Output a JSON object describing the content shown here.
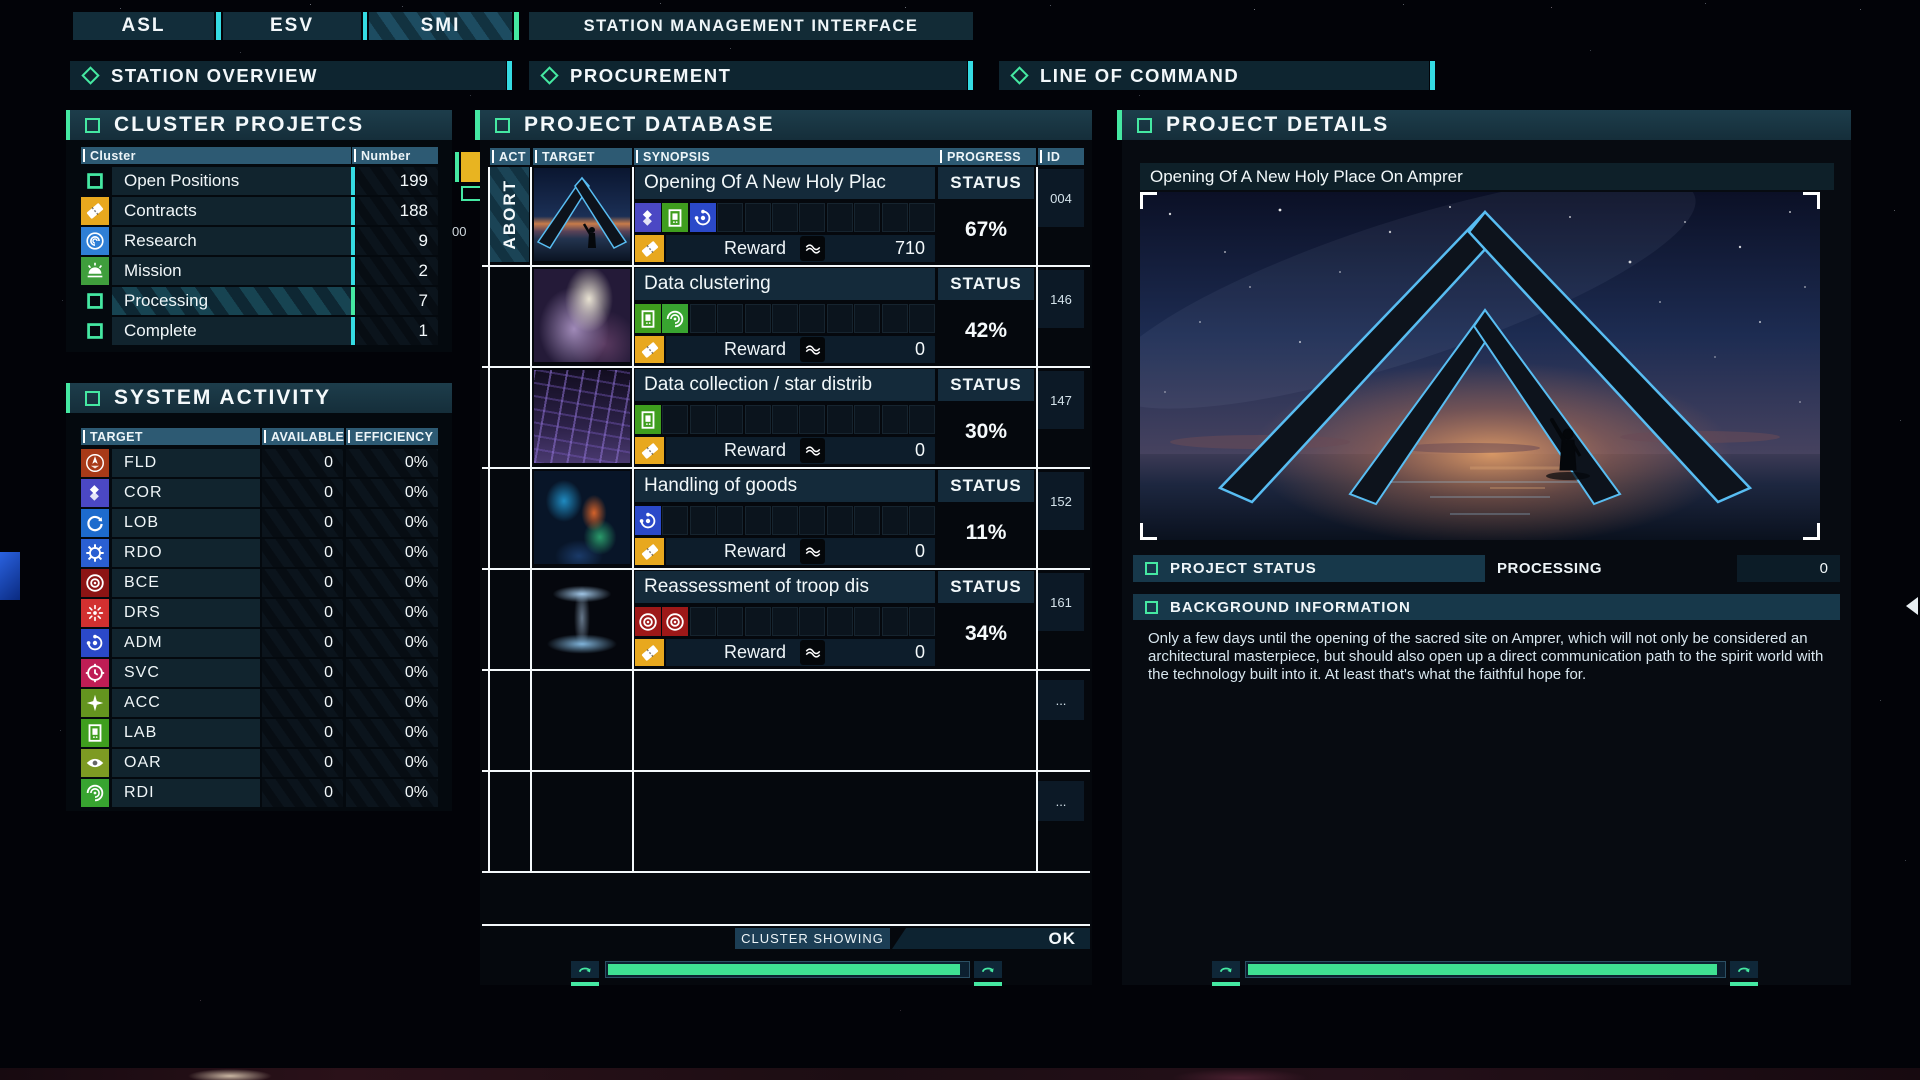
{
  "colors": {
    "green": "#45e8a2",
    "cyan": "#35dbe3",
    "amber": "#e8a81e"
  },
  "top_bar": {
    "tabs": [
      {
        "label": "ASL",
        "active": false
      },
      {
        "label": "ESV",
        "active": false
      },
      {
        "label": "SMI",
        "active": true
      }
    ],
    "title": "STATION MANAGEMENT INTERFACE"
  },
  "nav_tabs": [
    {
      "label": "STATION OVERVIEW"
    },
    {
      "label": "PROCUREMENT"
    },
    {
      "label": "LINE OF COMMAND"
    }
  ],
  "cluster_projects": {
    "title": "CLUSTER PROJETCS",
    "columns": [
      "Cluster",
      "Number"
    ],
    "rows": [
      {
        "label": "Open Positions",
        "value": "199",
        "icon": "square-outline",
        "icon_bg": ""
      },
      {
        "label": "Contracts",
        "value": "188",
        "icon": "ticket",
        "icon_bg": "#e8a81e"
      },
      {
        "label": "Research",
        "value": "9",
        "icon": "shell",
        "icon_bg": "#2f7fd6"
      },
      {
        "label": "Mission",
        "value": "2",
        "icon": "sunrise",
        "icon_bg": "#3f9e3c"
      },
      {
        "label": "Processing",
        "value": "7",
        "icon": "square-outline",
        "icon_bg": "",
        "highlight": true
      },
      {
        "label": "Complete",
        "value": "1",
        "icon": "square-outline",
        "icon_bg": ""
      }
    ]
  },
  "system_activity": {
    "title": "SYSTEM ACTIVITY",
    "columns": [
      "TARGET",
      "AVAILABLE",
      "EFFICIENCY"
    ],
    "rows": [
      {
        "label": "FLD",
        "available": "0",
        "efficiency": "0%",
        "icon": "ship",
        "icon_bg": "#a83a18"
      },
      {
        "label": "COR",
        "available": "0",
        "efficiency": "0%",
        "icon": "diamonds",
        "icon_bg": "#4b48c4"
      },
      {
        "label": "LOB",
        "available": "0",
        "efficiency": "0%",
        "icon": "cycle",
        "icon_bg": "#1d6bcd"
      },
      {
        "label": "RDO",
        "available": "0",
        "efficiency": "0%",
        "icon": "gearwheel",
        "icon_bg": "#2a5fd2"
      },
      {
        "label": "BCE",
        "available": "0",
        "efficiency": "0%",
        "icon": "target",
        "icon_bg": "#8c1414"
      },
      {
        "label": "DRS",
        "available": "0",
        "efficiency": "0%",
        "icon": "burst",
        "icon_bg": "#d23030"
      },
      {
        "label": "ADM",
        "available": "0",
        "efficiency": "0%",
        "icon": "swirl",
        "icon_bg": "#2b49c9"
      },
      {
        "label": "SVC",
        "available": "0",
        "efficiency": "0%",
        "icon": "gearclock",
        "icon_bg": "#bf1d55"
      },
      {
        "label": "ACC",
        "available": "0",
        "efficiency": "0%",
        "icon": "compass",
        "icon_bg": "#64941f"
      },
      {
        "label": "LAB",
        "available": "0",
        "efficiency": "0%",
        "icon": "cabinet",
        "icon_bg": "#3f9e1e"
      },
      {
        "label": "OAR",
        "available": "0",
        "efficiency": "0%",
        "icon": "eye",
        "icon_bg": "#7d9a23"
      },
      {
        "label": "RDI",
        "available": "0",
        "efficiency": "0%",
        "icon": "spiral",
        "icon_bg": "#38a430"
      }
    ]
  },
  "project_database": {
    "title": "PROJECT DATABASE",
    "columns": [
      "ACT",
      "TARGET",
      "SYNOPSIS",
      "PROGRESS",
      "ID"
    ],
    "side_page": "00",
    "status_label": "STATUS",
    "reward_label": "Reward",
    "abort_label": "ABORT",
    "rows": [
      {
        "title": "Opening Of A New Holy Plac",
        "progress": "67%",
        "id": "004",
        "reward": "710",
        "icons": [
          "COR",
          "LAB",
          "ADM"
        ],
        "thumb": "pyramid",
        "abort": true
      },
      {
        "title": "Data clustering",
        "progress": "42%",
        "id": "146",
        "reward": "0",
        "icons": [
          "LAB",
          "RDI"
        ],
        "thumb": "nebula",
        "abort": false
      },
      {
        "title": "Data collection / star distrib",
        "progress": "30%",
        "id": "147",
        "reward": "0",
        "icons": [
          "LAB"
        ],
        "thumb": "grid",
        "abort": false
      },
      {
        "title": "Handling of goods",
        "progress": "11%",
        "id": "152",
        "reward": "0",
        "icons": [
          "ADM"
        ],
        "thumb": "city",
        "abort": false
      },
      {
        "title": "Reassessment of troop dis",
        "progress": "34%",
        "id": "161",
        "reward": "0",
        "icons": [
          "BCE",
          "BCE"
        ],
        "thumb": "ufo",
        "abort": false
      }
    ],
    "empty_ids": [
      "...",
      "..."
    ],
    "footer": {
      "cluster_showing": "CLUSTER SHOWING",
      "ok": "OK"
    }
  },
  "project_details": {
    "title": "PROJECT DETAILS",
    "heading": "Opening Of A New Holy Place On Amprer",
    "status_label": "PROJECT STATUS",
    "status_value": "PROCESSING",
    "status_number": "0",
    "background_label": "BACKGROUND INFORMATION",
    "background_text": "Only a few days until the opening of the sacred site on Amprer, which will not only be considered an architectural masterpiece, but should also open up a direct communication path to the spirit world with the technology built into it. At least that's what the faithful hope for."
  },
  "icon_codes": {
    "FLD": "ship",
    "COR": "diamonds",
    "LOB": "cycle",
    "RDO": "gearwheel",
    "BCE": "target",
    "DRS": "burst",
    "ADM": "swirl",
    "SVC": "gearclock",
    "ACC": "compass",
    "LAB": "cabinet",
    "OAR": "eye",
    "RDI": "spiral"
  },
  "icon_code_colors": {
    "COR": "#4b48c4",
    "LAB": "#3f9e1e",
    "ADM": "#2b49c9",
    "RDI": "#38a430",
    "BCE": "#9e1818"
  }
}
